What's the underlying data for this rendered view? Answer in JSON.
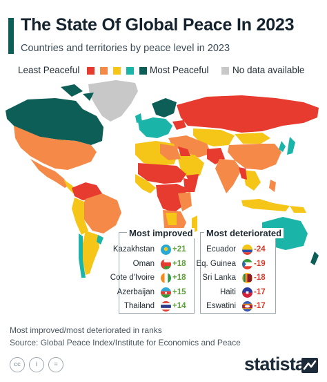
{
  "title": "The State Of Global Peace In 2023",
  "subtitle": "Countries and territories by peace level in 2023",
  "legend": {
    "least": "Least Peaceful",
    "most": "Most Peaceful",
    "nodata": "No data available",
    "scale_colors": [
      "#e63b2e",
      "#f58a48",
      "#f5c518",
      "#1bb4a8",
      "#0d5e57"
    ],
    "nodata_color": "#c8c8c8"
  },
  "colors": {
    "title_bar": "#0d5e57",
    "ocean": "#ffffff",
    "positive": "#5da03a",
    "negative": "#d63a2a"
  },
  "most_improved": {
    "title": "Most improved",
    "rows": [
      {
        "country": "Kazakhstan",
        "change": "+21",
        "flag": "kazakhstan-flag-icon"
      },
      {
        "country": "Oman",
        "change": "+18",
        "flag": "oman-flag-icon"
      },
      {
        "country": "Cote d'Ivoire",
        "change": "+18",
        "flag": "cote-divoire-flag-icon"
      },
      {
        "country": "Azerbaijan",
        "change": "+15",
        "flag": "azerbaijan-flag-icon"
      },
      {
        "country": "Thailand",
        "change": "+14",
        "flag": "thailand-flag-icon"
      }
    ]
  },
  "most_deteriorated": {
    "title": "Most deteriorated",
    "rows": [
      {
        "country": "Ecuador",
        "change": "-24",
        "flag": "ecuador-flag-icon"
      },
      {
        "country": "Eq. Guinea",
        "change": "-19",
        "flag": "eq-guinea-flag-icon"
      },
      {
        "country": "Sri Lanka",
        "change": "-18",
        "flag": "sri-lanka-flag-icon"
      },
      {
        "country": "Haiti",
        "change": "-17",
        "flag": "haiti-flag-icon"
      },
      {
        "country": "Eswatini",
        "change": "-17",
        "flag": "eswatini-flag-icon"
      }
    ]
  },
  "footer": {
    "note": "Most improved/most deteriorated in ranks",
    "source": "Source: Global Peace Index/Institute for Economics and Peace",
    "brand": "statista",
    "license_icons": [
      "cc-icon",
      "by-icon",
      "nd-icon"
    ],
    "license_labels": [
      "cc",
      "i",
      "="
    ]
  }
}
